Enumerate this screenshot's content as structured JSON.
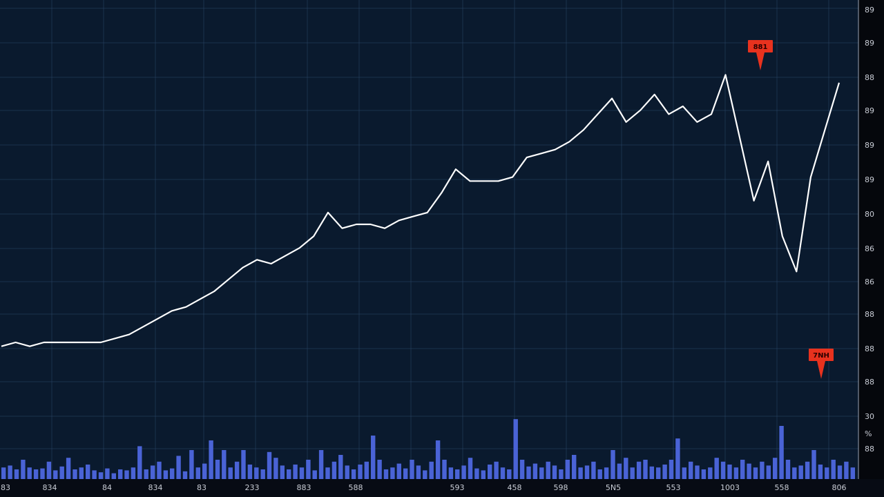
{
  "colors": {
    "background": "#0a1a2e",
    "grid": "#2a4466",
    "price_line": "#ffffff",
    "volume_bars": "#4a63d6",
    "callout": "#e8321e",
    "axis_text": "#c9cdd6"
  },
  "chart_data": {
    "type": "line",
    "title": "",
    "xlabel": "",
    "ylabel": "",
    "grid": true,
    "x_tick_labels": [
      "83",
      "834",
      "84",
      "834",
      "83",
      "233",
      "883",
      "588",
      "593",
      "458",
      "598",
      "5N5",
      "553",
      "1003",
      "558",
      "806"
    ],
    "y_tick_labels": [
      "89",
      "89",
      "88",
      "89",
      "89",
      "89",
      "80",
      "86",
      "86",
      "88",
      "88",
      "88",
      "30",
      "%",
      "88"
    ],
    "annotations": [
      {
        "label": "881",
        "kind": "peak-marker"
      },
      {
        "label": "7NH",
        "kind": "low-marker"
      }
    ],
    "series": [
      {
        "kind": "price",
        "points": [
          [
            0,
            0.19
          ],
          [
            1,
            0.2
          ],
          [
            2,
            0.19
          ],
          [
            3,
            0.2
          ],
          [
            4,
            0.2
          ],
          [
            5,
            0.2
          ],
          [
            6,
            0.2
          ],
          [
            7,
            0.2
          ],
          [
            8,
            0.21
          ],
          [
            9,
            0.22
          ],
          [
            10,
            0.24
          ],
          [
            11,
            0.26
          ],
          [
            12,
            0.28
          ],
          [
            13,
            0.29
          ],
          [
            14,
            0.31
          ],
          [
            15,
            0.33
          ],
          [
            16,
            0.36
          ],
          [
            17,
            0.39
          ],
          [
            18,
            0.41
          ],
          [
            19,
            0.4
          ],
          [
            20,
            0.42
          ],
          [
            21,
            0.44
          ],
          [
            22,
            0.47
          ],
          [
            23,
            0.53
          ],
          [
            24,
            0.49
          ],
          [
            25,
            0.5
          ],
          [
            26,
            0.5
          ],
          [
            27,
            0.49
          ],
          [
            28,
            0.51
          ],
          [
            29,
            0.52
          ],
          [
            30,
            0.53
          ],
          [
            31,
            0.58
          ],
          [
            32,
            0.64
          ],
          [
            33,
            0.61
          ],
          [
            34,
            0.61
          ],
          [
            35,
            0.61
          ],
          [
            36,
            0.62
          ],
          [
            37,
            0.67
          ],
          [
            38,
            0.68
          ],
          [
            39,
            0.69
          ],
          [
            40,
            0.71
          ],
          [
            41,
            0.74
          ],
          [
            42,
            0.78
          ],
          [
            43,
            0.82
          ],
          [
            44,
            0.76
          ],
          [
            45,
            0.79
          ],
          [
            46,
            0.83
          ],
          [
            47,
            0.78
          ],
          [
            48,
            0.8
          ],
          [
            49,
            0.76
          ],
          [
            50,
            0.78
          ],
          [
            51,
            0.88
          ],
          [
            52,
            0.72
          ],
          [
            53,
            0.56
          ],
          [
            54,
            0.66
          ],
          [
            55,
            0.47
          ],
          [
            56,
            0.38
          ],
          [
            57,
            0.62
          ],
          [
            58,
            0.74
          ],
          [
            59,
            0.86
          ]
        ]
      },
      {
        "kind": "volume",
        "values": [
          0.12,
          0.14,
          0.1,
          0.2,
          0.12,
          0.1,
          0.11,
          0.18,
          0.09,
          0.13,
          0.22,
          0.1,
          0.12,
          0.15,
          0.09,
          0.07,
          0.11,
          0.06,
          0.1,
          0.09,
          0.12,
          0.34,
          0.1,
          0.14,
          0.18,
          0.09,
          0.11,
          0.24,
          0.08,
          0.3,
          0.12,
          0.16,
          0.4,
          0.2,
          0.3,
          0.12,
          0.18,
          0.3,
          0.15,
          0.12,
          0.1,
          0.28,
          0.22,
          0.14,
          0.1,
          0.15,
          0.12,
          0.2,
          0.09,
          0.3,
          0.12,
          0.18,
          0.25,
          0.14,
          0.1,
          0.15,
          0.18,
          0.45,
          0.2,
          0.1,
          0.12,
          0.16,
          0.11,
          0.2,
          0.14,
          0.09,
          0.18,
          0.4,
          0.2,
          0.12,
          0.1,
          0.14,
          0.22,
          0.11,
          0.09,
          0.15,
          0.18,
          0.12,
          0.1,
          0.62,
          0.2,
          0.13,
          0.16,
          0.12,
          0.18,
          0.14,
          0.1,
          0.2,
          0.25,
          0.12,
          0.14,
          0.18,
          0.1,
          0.12,
          0.3,
          0.16,
          0.22,
          0.12,
          0.18,
          0.2,
          0.13,
          0.12,
          0.15,
          0.2,
          0.42,
          0.12,
          0.18,
          0.14,
          0.1,
          0.12,
          0.22,
          0.18,
          0.15,
          0.12,
          0.2,
          0.16,
          0.12,
          0.18,
          0.14,
          0.22,
          0.55,
          0.2,
          0.12,
          0.14,
          0.18,
          0.3,
          0.15,
          0.12,
          0.2,
          0.14,
          0.18,
          0.12
        ]
      }
    ]
  }
}
